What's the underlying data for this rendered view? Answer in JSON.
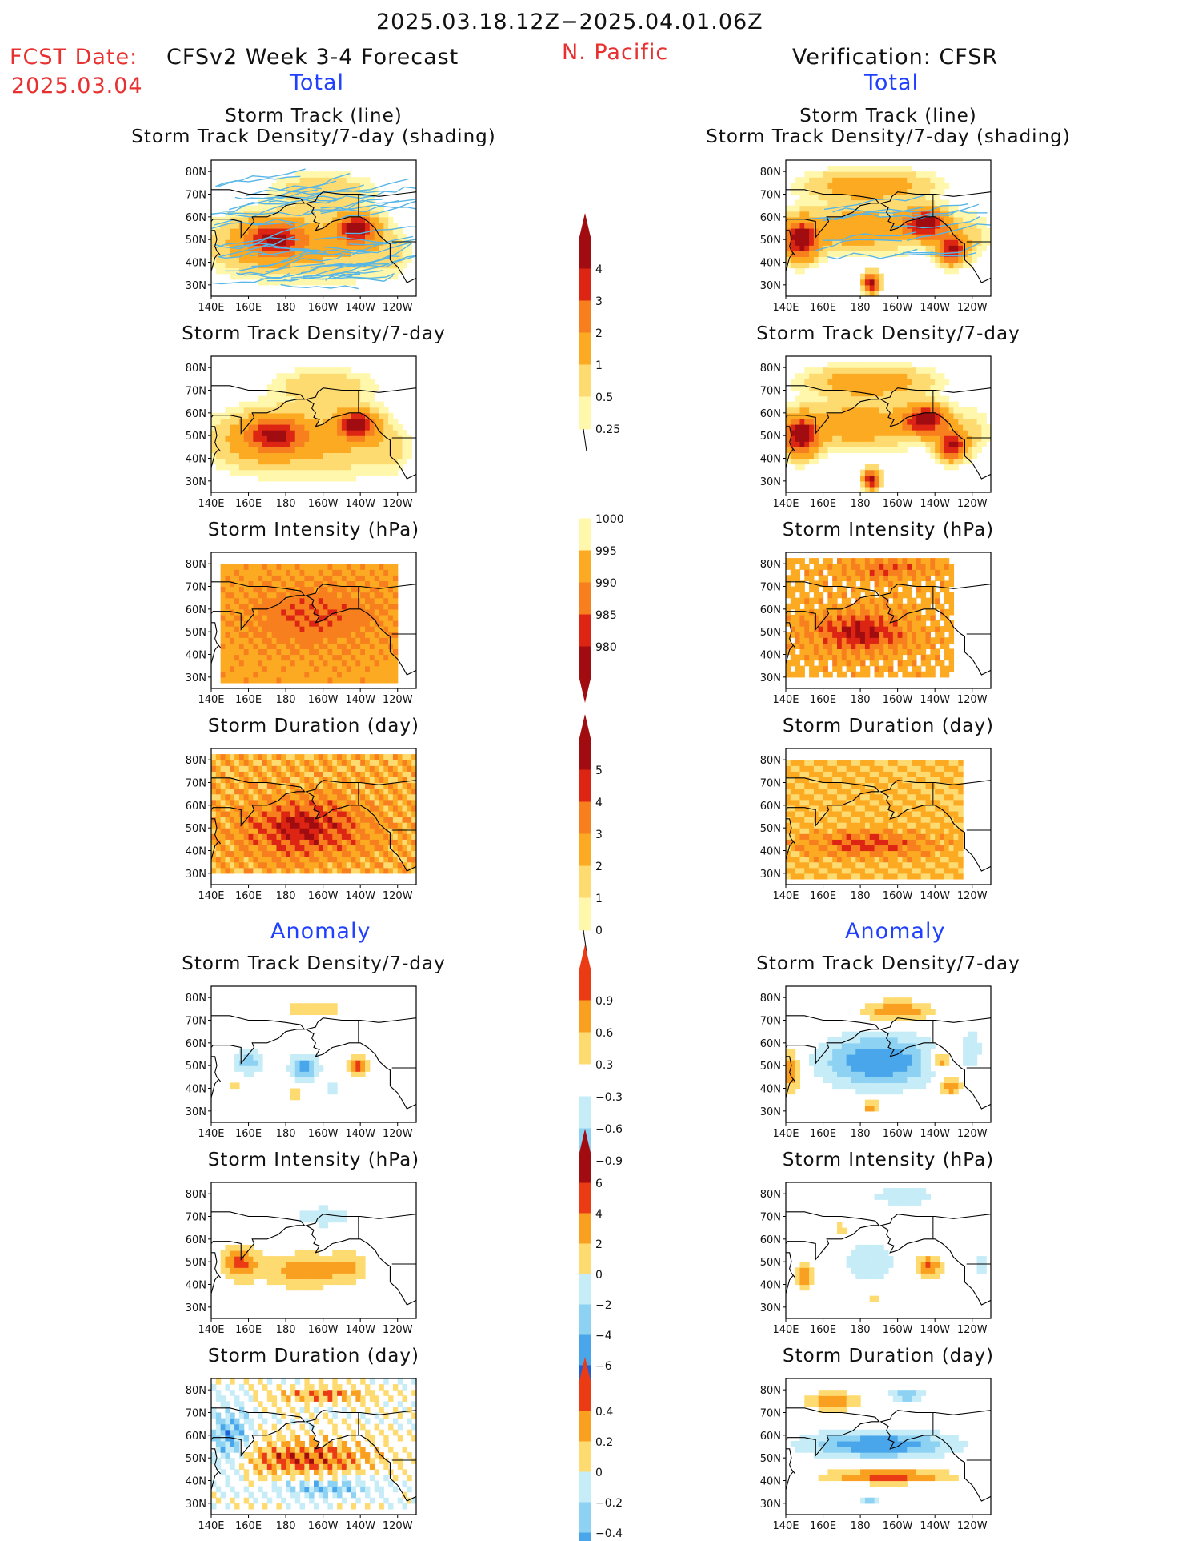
{
  "header": {
    "date_range": "2025.03.18.12Z−2025.04.01.06Z",
    "region": "N. Pacific",
    "fcst_label": "FCST Date:",
    "fcst_date": "2025.03.04",
    "model_title": "CFSv2 Week 3-4 Forecast",
    "verification_title": "Verification: CFSR",
    "total_label": "Total",
    "anomaly_label": "Anomaly"
  },
  "axes": {
    "x_ticks": [
      "140E",
      "160E",
      "180",
      "160W",
      "140W",
      "120W"
    ],
    "y_ticks": [
      "80N",
      "70N",
      "60N",
      "50N",
      "40N",
      "30N"
    ],
    "x_range_deg_east": [
      140,
      250
    ],
    "y_range_deg_north": [
      25,
      85
    ]
  },
  "panel_titles": {
    "track_line": "Storm Track (line)",
    "track_shading": "Storm Track Density/7-day (shading)",
    "density": "Storm Track Density/7-day",
    "intensity": "Storm Intensity (hPa)",
    "duration": "Storm Duration (day)"
  },
  "colorbars": [
    {
      "name": "density",
      "labels": [
        "4",
        "3",
        "2",
        "1",
        "0.5",
        "0.25"
      ]
    },
    {
      "name": "intensity",
      "labels": [
        "1000",
        "995",
        "990",
        "985",
        "980"
      ]
    },
    {
      "name": "duration",
      "labels": [
        "5",
        "4",
        "3",
        "2",
        "1",
        "0"
      ]
    },
    {
      "name": "density-anomaly",
      "labels": [
        "0.9",
        "0.6",
        "0.3",
        "−0.3",
        "−0.6",
        "−0.9"
      ]
    },
    {
      "name": "intensity-anomaly",
      "labels": [
        "6",
        "4",
        "2",
        "0",
        "−2",
        "−4",
        "−6"
      ]
    },
    {
      "name": "duration-anomaly",
      "labels": [
        "0.4",
        "0.2",
        "0",
        "−0.2",
        "−0.4"
      ]
    }
  ],
  "chart_data": [
    {
      "type": "heatmap",
      "panel": "Forecast Total Storm Track Density/7-day with Storm Track lines",
      "hotspots": [
        {
          "lon": 175,
          "lat": 51,
          "value": 3
        },
        {
          "lon": 218,
          "lat": 55,
          "value": 4
        }
      ]
    },
    {
      "type": "heatmap",
      "panel": "Forecast Total Storm Track Density/7-day",
      "hotspots": [
        {
          "lon": 175,
          "lat": 51,
          "value": 3
        },
        {
          "lon": 218,
          "lat": 55,
          "value": 4
        }
      ]
    },
    {
      "type": "heatmap",
      "panel": "Forecast Total Storm Intensity (hPa)",
      "range": [
        985,
        1000
      ]
    },
    {
      "type": "heatmap",
      "panel": "Forecast Total Storm Duration (day)",
      "range": [
        1,
        5
      ]
    },
    {
      "type": "heatmap",
      "panel": "Verification Total Storm Track Density/7-day with Storm Track lines",
      "hotspots": [
        {
          "lon": 148,
          "lat": 50,
          "value": 4
        },
        {
          "lon": 215,
          "lat": 57,
          "value": 4
        },
        {
          "lon": 229,
          "lat": 46,
          "value": 4
        },
        {
          "lon": 186,
          "lat": 31,
          "value": 4
        }
      ]
    },
    {
      "type": "heatmap",
      "panel": "Verification Total Storm Track Density/7-day",
      "hotspots": [
        {
          "lon": 148,
          "lat": 50,
          "value": 4
        },
        {
          "lon": 215,
          "lat": 57,
          "value": 4
        },
        {
          "lon": 229,
          "lat": 46,
          "value": 4
        },
        {
          "lon": 186,
          "lat": 31,
          "value": 4
        }
      ]
    },
    {
      "type": "heatmap",
      "panel": "Verification Total Storm Intensity (hPa)",
      "range": [
        980,
        1000
      ]
    },
    {
      "type": "heatmap",
      "panel": "Verification Total Storm Duration (day)",
      "range": [
        1,
        4
      ]
    },
    {
      "type": "heatmap",
      "panel": "Forecast Anomaly Storm Track Density/7-day",
      "range": [
        -0.9,
        0.9
      ]
    },
    {
      "type": "heatmap",
      "panel": "Forecast Anomaly Storm Intensity (hPa)",
      "range": [
        -6,
        6
      ]
    },
    {
      "type": "heatmap",
      "panel": "Forecast Anomaly Storm Duration (day)",
      "range": [
        -0.4,
        0.4
      ]
    },
    {
      "type": "heatmap",
      "panel": "Verification Anomaly Storm Track Density/7-day",
      "range": [
        -0.9,
        0.9
      ]
    },
    {
      "type": "heatmap",
      "panel": "Verification Anomaly Storm Intensity (hPa)",
      "range": [
        -6,
        6
      ]
    },
    {
      "type": "heatmap",
      "panel": "Verification Anomaly Storm Duration (day)",
      "range": [
        -0.4,
        0.4
      ]
    }
  ],
  "colors": {
    "density": [
      "#fff7ab",
      "#fedb71",
      "#fcaa22",
      "#f77f1e",
      "#dd2514",
      "#a10c10"
    ],
    "intensity": [
      "#a10c10",
      "#dd2514",
      "#f77f1e",
      "#fcaa22",
      "#fff7ab"
    ],
    "anomaly_pos": [
      "#fedb71",
      "#f9a021",
      "#ea3b15",
      "#a10c10"
    ],
    "anomaly_neg": [
      "#c5ecf7",
      "#8ed2f3",
      "#4aa6ea",
      "#1d60d8"
    ],
    "track_line": "#58b6e6",
    "title_red": "#e83030",
    "title_blue": "#2040ff"
  }
}
